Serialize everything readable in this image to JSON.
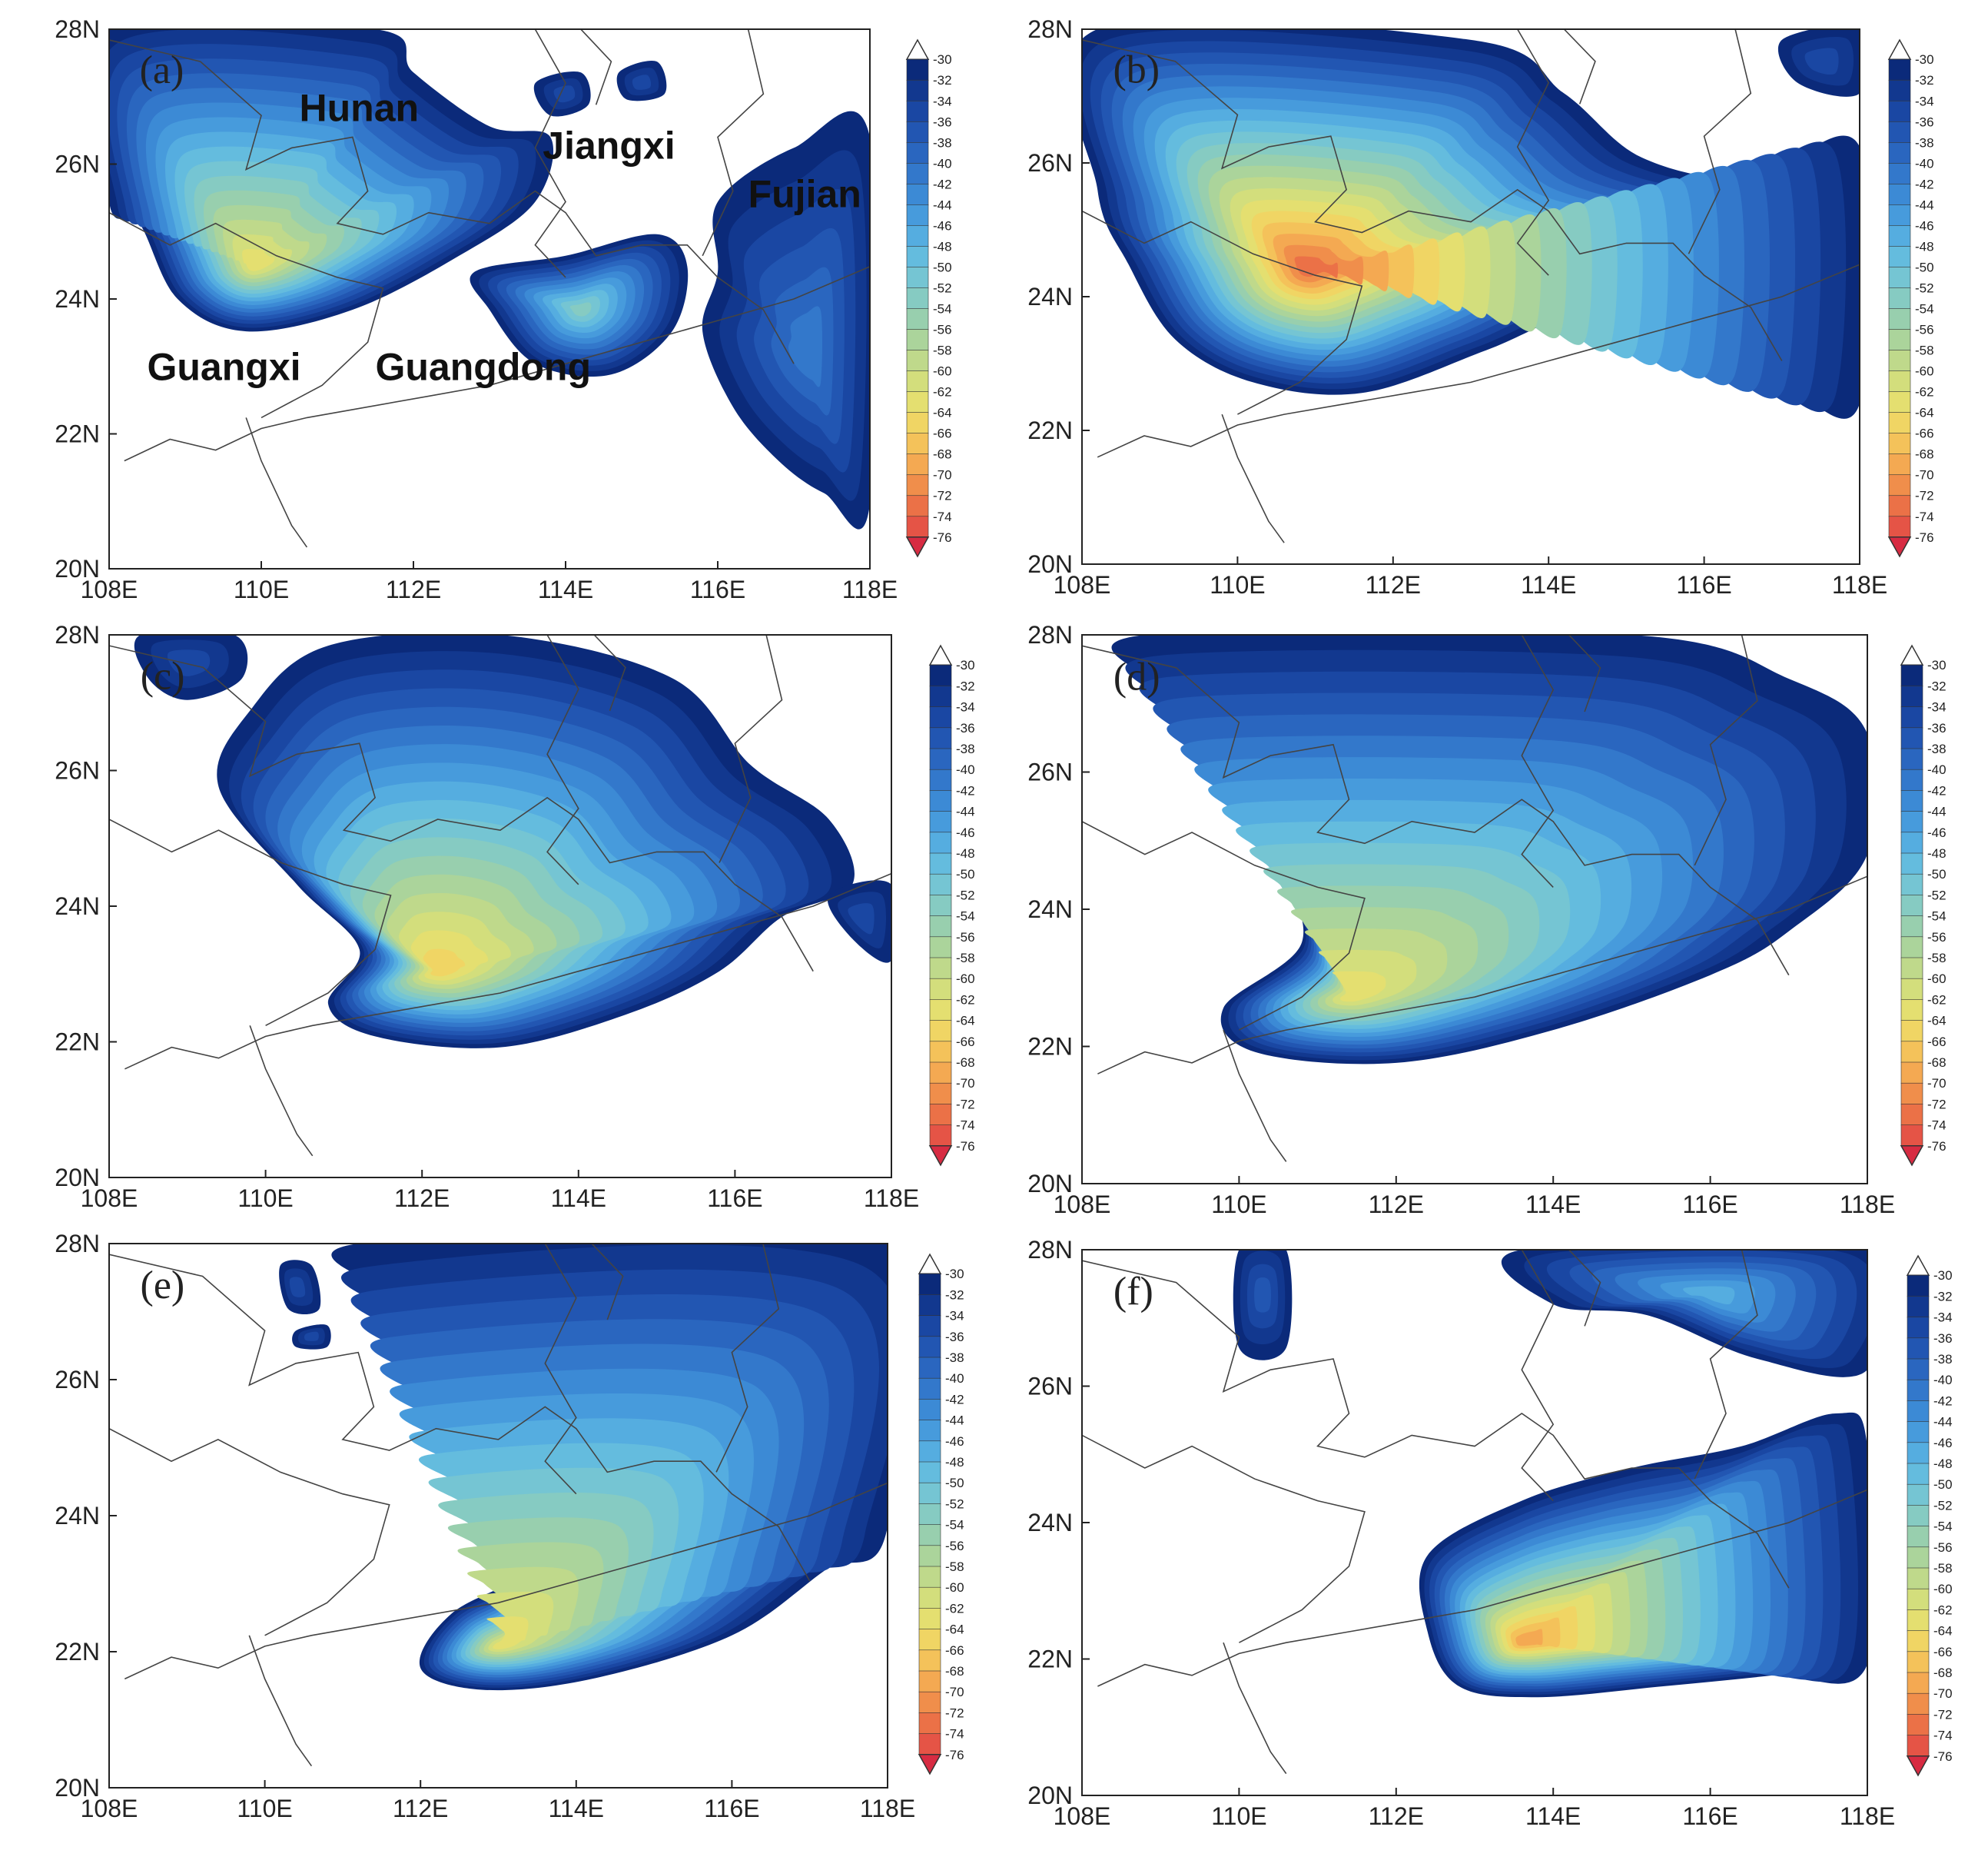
{
  "figure": {
    "description_free": true,
    "colorbar": {
      "ticks": [
        "-30",
        "-32",
        "-34",
        "-36",
        "-38",
        "-40",
        "-42",
        "-44",
        "-46",
        "-48",
        "-50",
        "-52",
        "-54",
        "-56",
        "-58",
        "-60",
        "-62",
        "-64",
        "-66",
        "-68",
        "-70",
        "-72",
        "-74",
        "-76"
      ],
      "colors": [
        "#0b2a7a",
        "#12388f",
        "#1a47a3",
        "#2256b2",
        "#2a66bf",
        "#3378cb",
        "#3c8ad5",
        "#479bdc",
        "#55ade0",
        "#64bcde",
        "#75c5d3",
        "#86cbc2",
        "#98cfae",
        "#abd49b",
        "#bfd98b",
        "#d3de7c",
        "#e4df70",
        "#f0d564",
        "#f4c25a",
        "#f4a952",
        "#f08e4b",
        "#eb7147",
        "#e55446",
        "#de3c44",
        "#d72b42"
      ]
    },
    "axes": {
      "lon_labels": [
        "108E",
        "110E",
        "112E",
        "114E",
        "116E",
        "118E"
      ],
      "lat_labels": [
        "20N",
        "22N",
        "24N",
        "26N",
        "28N"
      ],
      "lon_range": [
        108,
        118
      ],
      "lat_range": [
        20,
        28
      ]
    },
    "panels": [
      {
        "letter": "(a)",
        "labels": [
          "Hunan",
          "Jiangxi",
          "Fujian",
          "Guangxi",
          "Guangdong"
        ]
      },
      {
        "letter": "(b)",
        "labels": []
      },
      {
        "letter": "(c)",
        "labels": []
      },
      {
        "letter": "(d)",
        "labels": []
      },
      {
        "letter": "(e)",
        "labels": []
      },
      {
        "letter": "(f)",
        "labels": []
      }
    ]
  }
}
